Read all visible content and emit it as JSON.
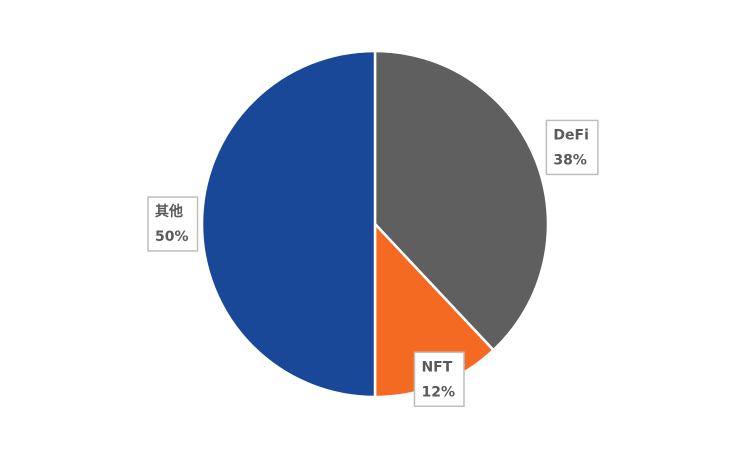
{
  "chart_data": {
    "type": "pie",
    "categories": [
      "DeFi",
      "NFT",
      "其他"
    ],
    "values": [
      38,
      12,
      50
    ],
    "value_labels": [
      "38%",
      "12%",
      "50%"
    ],
    "colors": [
      "#5f5f5f",
      "#f56a22",
      "#1a4898"
    ]
  }
}
